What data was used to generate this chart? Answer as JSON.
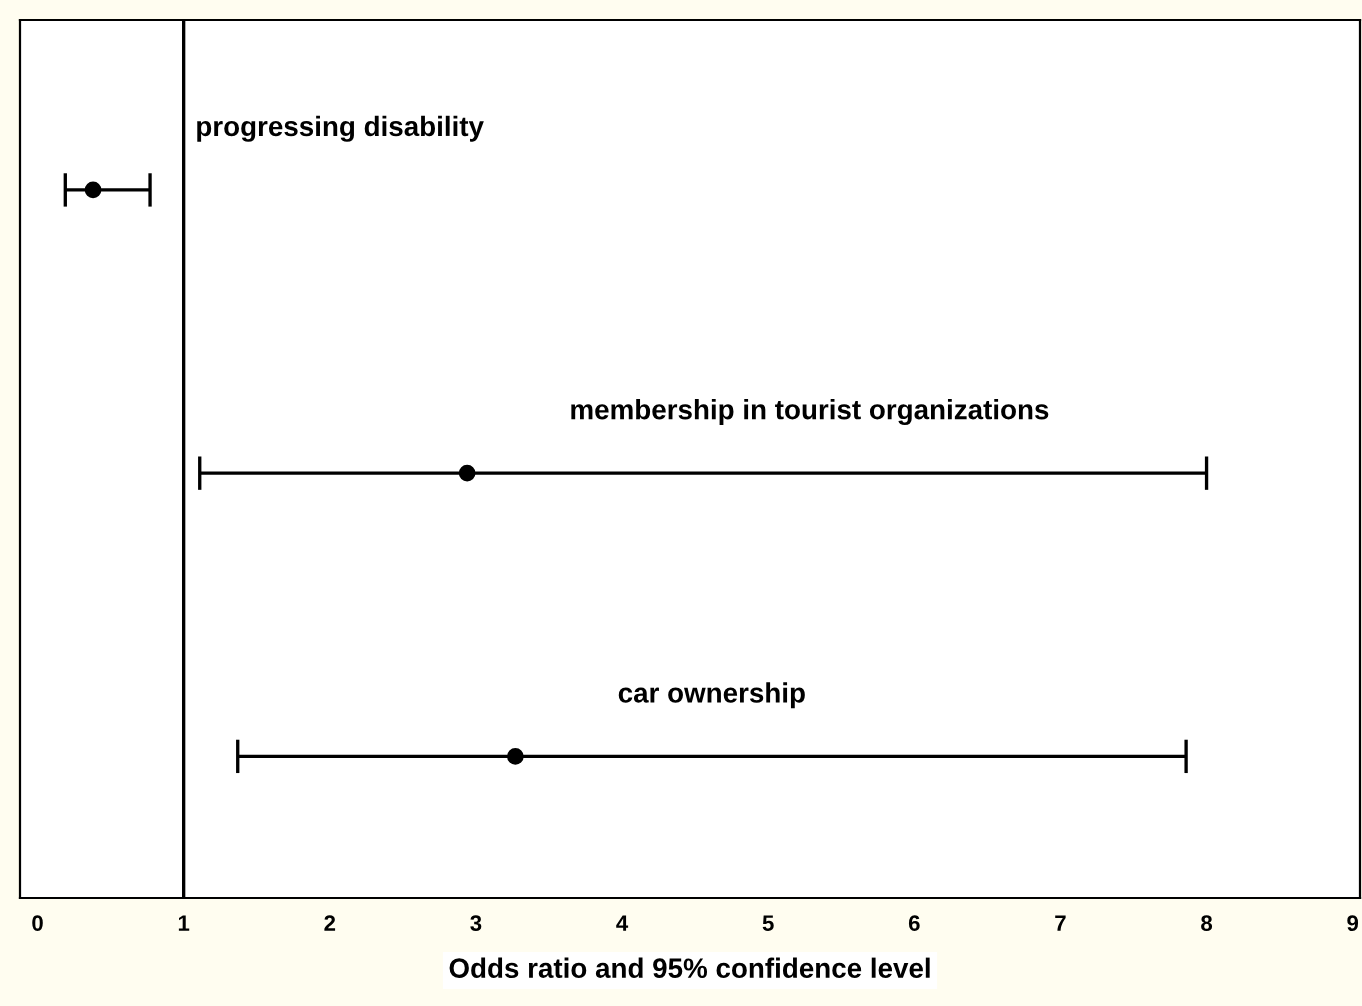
{
  "chart_data": {
    "type": "scatter",
    "orientation": "horizontal",
    "categories": [
      "progressing disability",
      "membership in tourist organizations",
      "car ownership"
    ],
    "values": [
      0.38,
      2.94,
      3.27
    ],
    "errors": [
      [
        0.19,
        0.77
      ],
      [
        1.11,
        8.0
      ],
      [
        1.37,
        7.86
      ]
    ],
    "color": "#000000",
    "marker": "circle",
    "xlim": [
      -0.12,
      9.05
    ],
    "xticks": [
      0,
      1,
      2,
      3,
      4,
      5,
      6,
      7,
      8,
      9
    ],
    "xlabel": "Odds ratio and 95% confidence level",
    "ref_lines": [
      {
        "axis": "x",
        "value": 1,
        "color": "#000000",
        "line_style": "solid"
      }
    ],
    "grid": false,
    "legend": false,
    "tick_labels": "x"
  }
}
